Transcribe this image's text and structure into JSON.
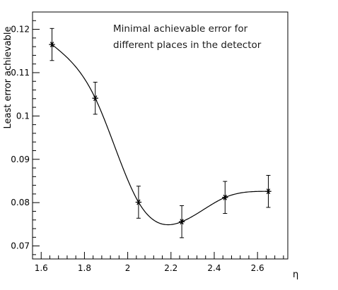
{
  "chart_data": {
    "type": "scatter",
    "title": "",
    "annotation_lines": [
      "Minimal achievable error for",
      "different places in the detector"
    ],
    "xlabel": "η",
    "ylabel": "Least error achievable",
    "xlim": [
      1.56,
      2.74
    ],
    "ylim": [
      0.067,
      0.124
    ],
    "xticks": [
      1.6,
      1.8,
      2.0,
      2.2,
      2.4,
      2.6
    ],
    "xtick_labels": [
      "1.6",
      "1.8",
      "2",
      "2.2",
      "2.4",
      "2.6"
    ],
    "yticks": [
      0.07,
      0.08,
      0.09,
      0.1,
      0.11,
      0.12
    ],
    "ytick_labels": [
      "0.07",
      "0.08",
      "0.09",
      "0.1",
      "0.11",
      "0.12"
    ],
    "marker": "asterisk",
    "grid": false,
    "legend": "none",
    "smooth_curve": true,
    "series": [
      {
        "x": [
          1.65,
          1.85,
          2.05,
          2.25,
          2.45,
          2.65
        ],
        "y": [
          0.1165,
          0.1041,
          0.0801,
          0.0756,
          0.0812,
          0.0826
        ],
        "yerr": [
          0.0037,
          0.0037,
          0.0037,
          0.0037,
          0.0037,
          0.0037
        ]
      }
    ],
    "colors": {
      "line": "#000000",
      "text": "#000000"
    }
  }
}
